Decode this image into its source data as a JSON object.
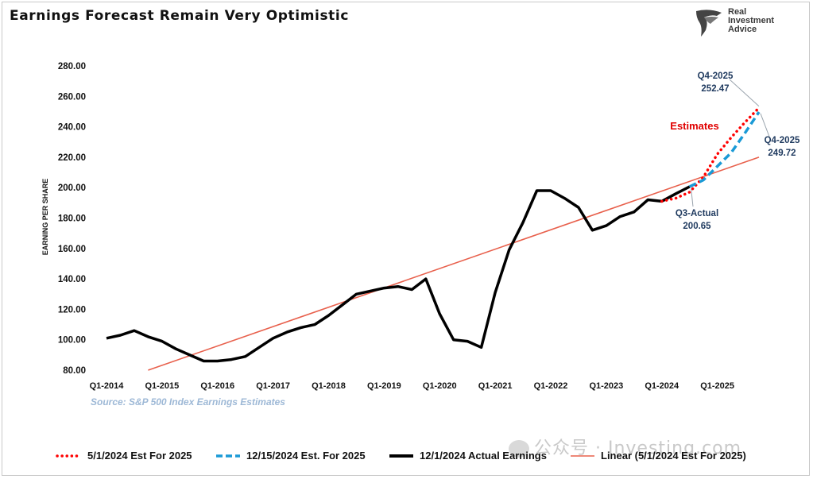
{
  "title": "Earnings Forecast Remain Very Optimistic",
  "logo": {
    "line1": "Real",
    "line2": "Investment",
    "line3": "Advice"
  },
  "source_note": "Source: S&P 500 Index Earnings Estimates",
  "watermark": "公众号 · Investing.com",
  "colors": {
    "actual": "#000000",
    "est_may": "#ff0000",
    "est_dec": "#1a9ad6",
    "linear": "#e8604c",
    "annotation": "#1f3a5f",
    "estimates_label": "#e00000"
  },
  "chart_data": {
    "type": "line",
    "ylabel": "EARNING PER SHARE",
    "ylim": [
      80,
      280
    ],
    "yticks": [
      "80.00",
      "100.00",
      "120.00",
      "140.00",
      "160.00",
      "180.00",
      "200.00",
      "220.00",
      "240.00",
      "260.00",
      "280.00"
    ],
    "xticks": [
      "Q1-2014",
      "Q1-2015",
      "Q1-2016",
      "Q1-2017",
      "Q1-2018",
      "Q1-2019",
      "Q1-2020",
      "Q1-2021",
      "Q1-2022",
      "Q1-2023",
      "Q1-2024",
      "Q1-2025"
    ],
    "x_start": "Q1-2014",
    "x_end": "Q4-2025",
    "series": [
      {
        "name": "12/1/2024 Actual Earnings",
        "style": "solid-thick",
        "color": "#000000",
        "x": [
          "Q1-2014",
          "Q2-2014",
          "Q3-2014",
          "Q4-2014",
          "Q1-2015",
          "Q2-2015",
          "Q3-2015",
          "Q4-2015",
          "Q1-2016",
          "Q2-2016",
          "Q3-2016",
          "Q4-2016",
          "Q1-2017",
          "Q2-2017",
          "Q3-2017",
          "Q4-2017",
          "Q1-2018",
          "Q2-2018",
          "Q3-2018",
          "Q4-2018",
          "Q1-2019",
          "Q2-2019",
          "Q3-2019",
          "Q4-2019",
          "Q1-2020",
          "Q2-2020",
          "Q3-2020",
          "Q4-2020",
          "Q1-2021",
          "Q2-2021",
          "Q3-2021",
          "Q4-2021",
          "Q1-2022",
          "Q2-2022",
          "Q3-2022",
          "Q4-2022",
          "Q1-2023",
          "Q2-2023",
          "Q3-2023",
          "Q4-2023",
          "Q1-2024",
          "Q2-2024",
          "Q3-2024"
        ],
        "values": [
          101,
          103,
          106,
          102,
          99,
          94,
          90,
          86,
          86,
          87,
          89,
          95,
          101,
          105,
          108,
          110,
          116,
          123,
          130,
          132,
          134,
          135,
          133,
          140,
          117,
          100,
          99,
          95,
          131,
          159,
          177,
          198,
          198,
          193,
          187,
          172,
          175,
          181,
          184,
          192,
          191,
          196,
          200.65
        ]
      },
      {
        "name": "5/1/2024 Est For 2025",
        "style": "dotted",
        "color": "#ff0000",
        "x": [
          "Q1-2024",
          "Q2-2024",
          "Q3-2024",
          "Q4-2024",
          "Q1-2025",
          "Q2-2025",
          "Q3-2025",
          "Q4-2025"
        ],
        "values": [
          191,
          193,
          197,
          207,
          222,
          233,
          243,
          252.47
        ]
      },
      {
        "name": "12/15/2024 Est. For 2025",
        "style": "dashed",
        "color": "#1a9ad6",
        "x": [
          "Q3-2024",
          "Q4-2024",
          "Q1-2025",
          "Q2-2025",
          "Q3-2025",
          "Q4-2025"
        ],
        "values": [
          200.65,
          205,
          214,
          223,
          236,
          249.72
        ]
      },
      {
        "name": "Linear (5/1/2024 Est For 2025)",
        "style": "solid-thin",
        "color": "#e8604c",
        "x": [
          "Q4-2014",
          "Q4-2025"
        ],
        "values": [
          80,
          220
        ]
      }
    ],
    "annotations": {
      "estimates": "Estimates",
      "q4_a_label": "Q4-2025",
      "q4_a_value": "252.47",
      "q4_b_label": "Q4-2025",
      "q4_b_value": "249.72",
      "q3_label": "Q3-Actual",
      "q3_value": "200.65"
    },
    "grid": false,
    "legend_position": "bottom"
  }
}
